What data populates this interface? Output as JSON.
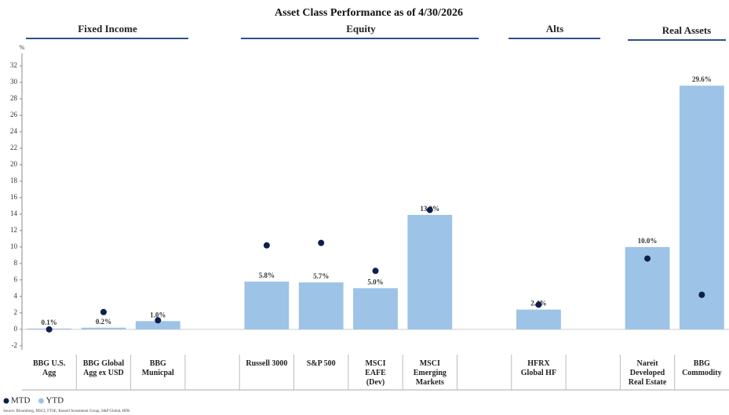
{
  "chart_data": {
    "type": "bar",
    "title": "Asset Class Performance as of 4/30/2026",
    "groups": [
      "Fixed Income",
      "Equity",
      "Alts",
      "Real Assets"
    ],
    "y_unit": "%",
    "categories": [
      "BBG U.S.\nAgg",
      "BBG Global\nAgg ex USD",
      "BBG\nMunicpal",
      null,
      "Russell 3000",
      "S&P 500",
      "MSCI\nEAFE\n(Dev)",
      "MSCI Emerging\nMarkets",
      null,
      "HFRX\nGlobal HF",
      null,
      "Nareit\nDeveloped\nReal Estate",
      "BBG\nCommodity"
    ],
    "series": [
      {
        "name": "MTD",
        "kind": "dot",
        "color": "#0d1f4f",
        "values": [
          0.0,
          2.1,
          1.1,
          null,
          10.2,
          10.5,
          7.1,
          14.5,
          null,
          3.0,
          null,
          8.6,
          4.2
        ]
      },
      {
        "name": "YTD",
        "kind": "bar",
        "color": "#9dc3e6",
        "values": [
          0.1,
          0.2,
          1.0,
          null,
          5.8,
          5.7,
          5.0,
          13.9,
          null,
          2.4,
          null,
          10.0,
          29.6
        ],
        "value_labels": [
          "0.1%",
          "0.2%",
          "1.0%",
          null,
          "5.8%",
          "5.7%",
          "5.0%",
          "13.9%",
          null,
          "2.4%",
          null,
          "10.0%",
          "29.6%"
        ]
      }
    ],
    "ylim": [
      -3,
      33
    ],
    "yticks": [
      -2,
      0,
      2,
      4,
      6,
      8,
      10,
      12,
      14,
      16,
      18,
      20,
      22,
      24,
      26,
      28,
      30,
      32
    ],
    "source": "Source: Bloomberg, MSCI, FTSE, Russell Investment Group, S&P Global, HFR"
  }
}
